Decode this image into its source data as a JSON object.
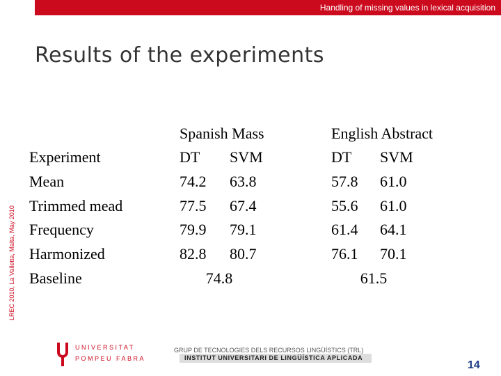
{
  "header": {
    "running_title": "Handling of missing values in lexical acquisition"
  },
  "side_note": "LREC 2010, La Valletta, Malta, May 2010",
  "title": "Results of the experiments",
  "table": {
    "group_headers": [
      "Spanish Mass",
      "English Abstract"
    ],
    "header": [
      "Experiment",
      "DT",
      "SVM",
      "DT",
      "SVM"
    ],
    "rows": [
      [
        "Mean",
        "74.2",
        "63.8",
        "57.8",
        "61.0"
      ],
      [
        "Trimmed mead",
        "77.5",
        "67.4",
        "55.6",
        "61.0"
      ],
      [
        "Frequency",
        "79.9",
        "79.1",
        "61.4",
        "64.1"
      ],
      [
        "Harmonized",
        "82.8",
        "80.7",
        "76.1",
        "70.1"
      ]
    ],
    "baseline": {
      "label": "Baseline",
      "values": [
        "74.8",
        "61.5"
      ]
    }
  },
  "footer": {
    "logo_line1": "UNIVERSITAT",
    "logo_line2": "POMPEU FABRA",
    "group": "GRUP DE TECNOLOGIES DELS RECURSOS LINGÜÍSTICS (TRL)",
    "institute": "INSTITUT UNIVERSITARI DE LINGÜÍSTICA APLICADA",
    "page_number": "14"
  }
}
